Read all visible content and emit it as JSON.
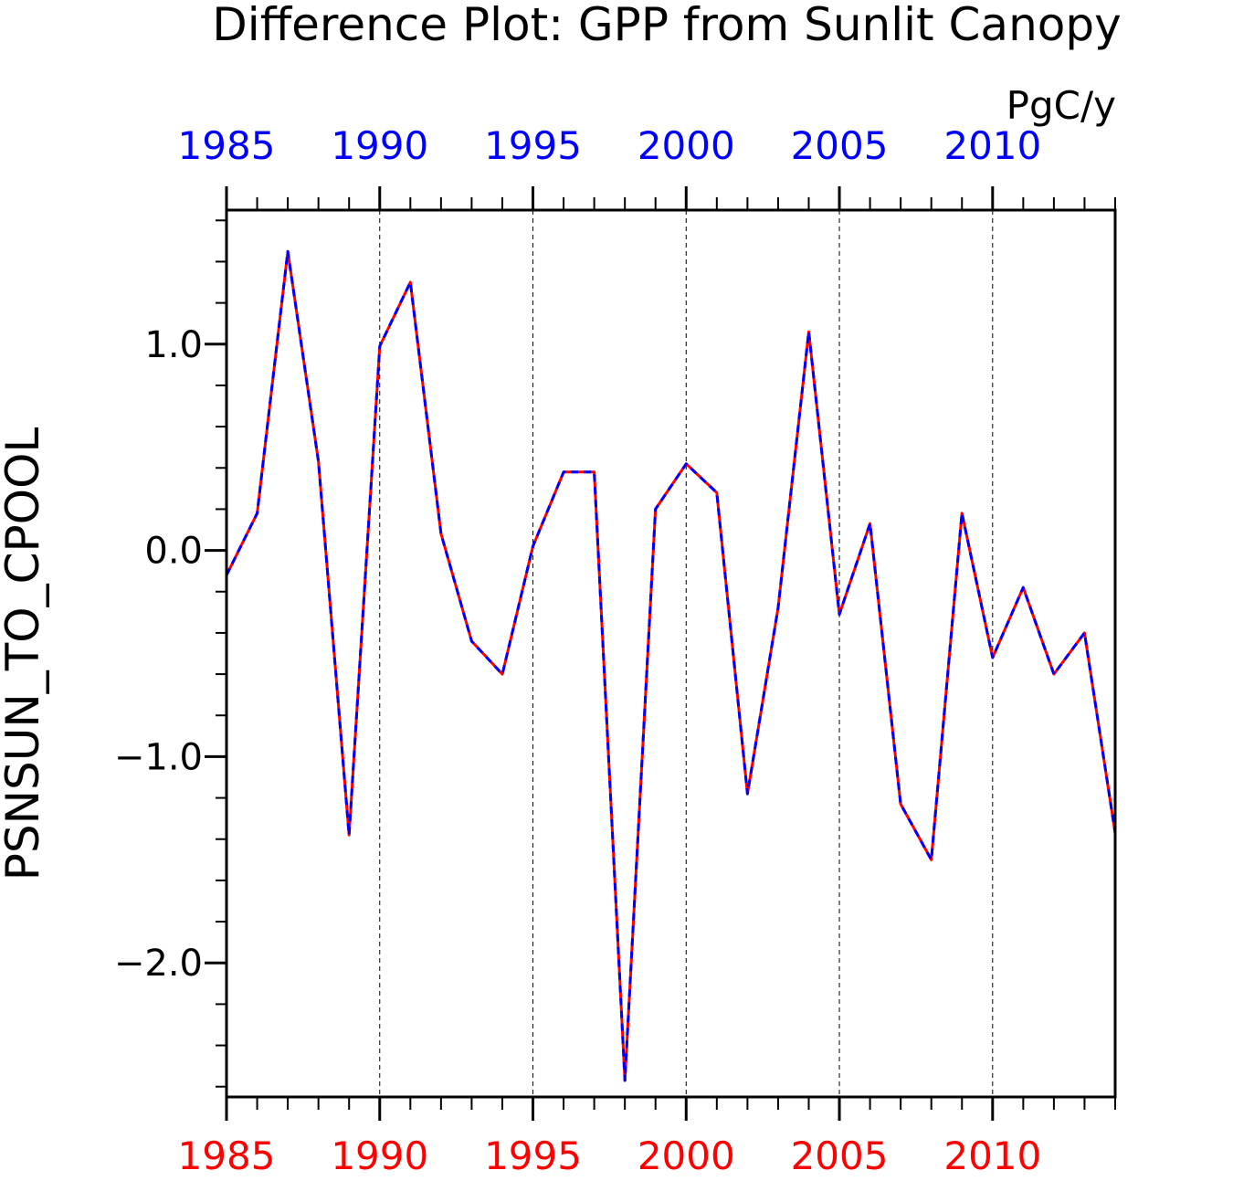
{
  "chart_data": {
    "type": "line",
    "title": "Difference Plot: GPP from Sunlit Canopy",
    "units": "PgC/y",
    "ylabel": "PSNSUN_TO_CPOOL",
    "xlim": [
      1985,
      2014
    ],
    "ylim": [
      -2.65,
      1.65
    ],
    "y_ticks": [
      1.0,
      0.0,
      -1.0,
      -2.0
    ],
    "y_tick_labels": [
      "1.0",
      "0.0",
      "−1.0",
      "−2.0"
    ],
    "x_ticks": [
      1985,
      1990,
      1995,
      2000,
      2005,
      2010
    ],
    "x_tick_labels_top": [
      "1985",
      "1990",
      "1995",
      "2000",
      "2005",
      "2010"
    ],
    "x_tick_labels_bottom": [
      "1985",
      "1990",
      "1995",
      "2000",
      "2005",
      "2010"
    ],
    "top_axis_color": "#0000ff",
    "bottom_axis_color": "#ff0000",
    "grid": "vertical dashed at major x ticks",
    "x": [
      1985,
      1986,
      1987,
      1988,
      1989,
      1990,
      1991,
      1992,
      1993,
      1994,
      1995,
      1996,
      1997,
      1998,
      1999,
      2000,
      2001,
      2002,
      2003,
      2004,
      2005,
      2006,
      2007,
      2008,
      2009,
      2010,
      2011,
      2012,
      2013,
      2014
    ],
    "series": [
      {
        "color": "#ff0000",
        "style": "solid",
        "values": [
          -0.12,
          0.18,
          1.45,
          0.43,
          -1.38,
          0.99,
          1.3,
          0.08,
          -0.44,
          -0.6,
          0.02,
          0.38,
          0.38,
          -2.57,
          0.2,
          0.42,
          0.28,
          -1.18,
          -0.28,
          1.06,
          -0.31,
          0.13,
          -1.23,
          -1.5,
          0.18,
          -0.52,
          -0.18,
          -0.6,
          -0.4,
          -1.37
        ]
      },
      {
        "color": "#0000ff",
        "style": "dashed",
        "values": [
          -0.12,
          0.18,
          1.45,
          0.43,
          -1.38,
          0.99,
          1.3,
          0.08,
          -0.44,
          -0.6,
          0.02,
          0.38,
          0.38,
          -2.57,
          0.2,
          0.42,
          0.28,
          -1.18,
          -0.28,
          1.06,
          -0.31,
          0.13,
          -1.23,
          -1.5,
          0.18,
          -0.52,
          -0.18,
          -0.6,
          -0.4,
          -1.37
        ]
      }
    ]
  }
}
